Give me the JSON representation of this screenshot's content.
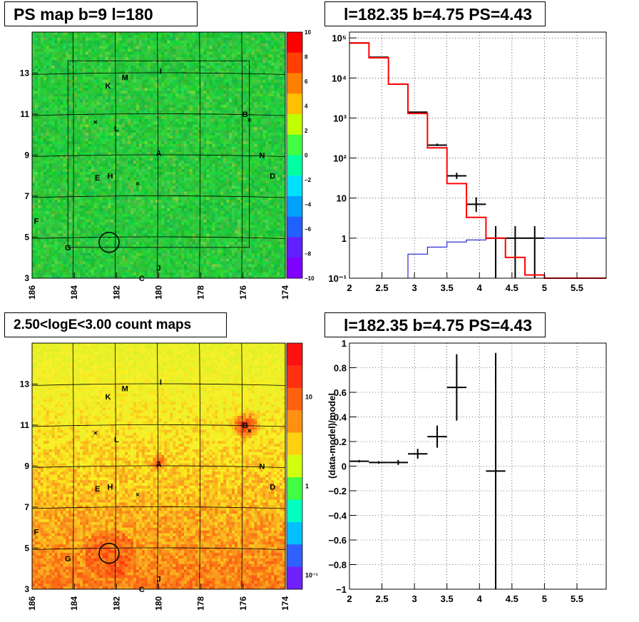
{
  "panels": {
    "map_top": {
      "title": "PS map b=9 l=180"
    },
    "spectrum": {
      "title": "l=182.35 b=4.75 PS=4.43"
    },
    "map_bottom": {
      "title": "2.50<logE<3.00 count maps"
    },
    "residual": {
      "title": "l=182.35 b=4.75 PS=4.43"
    }
  },
  "sources": [
    {
      "label": "A",
      "l": 180.0,
      "b": 9.1
    },
    {
      "label": "B",
      "l": 175.9,
      "b": 11.0
    },
    {
      "label": "C",
      "l": 180.8,
      "b": 3.0
    },
    {
      "label": "D",
      "l": 174.6,
      "b": 8.0
    },
    {
      "label": "E",
      "l": 182.9,
      "b": 7.9
    },
    {
      "label": "F",
      "l": 185.8,
      "b": 5.8
    },
    {
      "label": "G",
      "l": 184.3,
      "b": 4.5
    },
    {
      "label": "H",
      "l": 182.3,
      "b": 8.0
    },
    {
      "label": "I",
      "l": 179.9,
      "b": 13.1
    },
    {
      "label": "J",
      "l": 180.0,
      "b": 3.5
    },
    {
      "label": "K",
      "l": 182.4,
      "b": 12.4
    },
    {
      "label": "L",
      "l": 182.0,
      "b": 10.3
    },
    {
      "label": "M",
      "l": 181.6,
      "b": 12.8
    },
    {
      "label": "N",
      "l": 175.1,
      "b": 9.0
    }
  ],
  "crosses": [
    {
      "l": 183.0,
      "b": 10.6
    },
    {
      "l": 181.0,
      "b": 7.6
    },
    {
      "l": 175.7,
      "b": 10.7
    }
  ],
  "circle": {
    "l": 182.35,
    "b": 4.75
  },
  "chart_data": [
    {
      "type": "heatmap",
      "title": "PS map b=9 l=180",
      "x_ticks": [
        "186",
        "184",
        "182",
        "180",
        "178",
        "176",
        "174"
      ],
      "y_ticks": [
        "3",
        "5",
        "7",
        "9",
        "11",
        "13"
      ],
      "xlim": [
        186,
        174
      ],
      "ylim": [
        3,
        15
      ],
      "colorbar": {
        "min": -10,
        "max": 10,
        "ticks": [
          "10",
          "8",
          "6",
          "4",
          "2",
          "0",
          "−2",
          "−4",
          "−6",
          "−8",
          "−10"
        ]
      }
    },
    {
      "type": "line",
      "title": "l=182.35 b=4.75 PS=4.43",
      "x_ticks": [
        "2",
        "2.5",
        "3",
        "3.5",
        "4",
        "4.5",
        "5",
        "5.5"
      ],
      "y_ticks": [
        "10⁵",
        "10⁴",
        "10³",
        "10²",
        "10",
        "1",
        "10⁻¹"
      ],
      "xlim": [
        2,
        5.95
      ],
      "ylim": [
        0.1,
        140000
      ],
      "y_scale": "log",
      "grid": true,
      "bin_edges": [
        2.0,
        2.3,
        2.6,
        2.9,
        3.2,
        3.5,
        3.8,
        4.1,
        4.4,
        4.7,
        5.0,
        5.95
      ],
      "model_total": [
        75000,
        32000,
        7000,
        1300,
        180,
        23,
        3.3,
        1.0,
        0.33,
        0.12,
        0.1
      ],
      "model_background": [
        0.1,
        0.1,
        0.1,
        0.4,
        0.6,
        0.8,
        0.9,
        1.0,
        1.0,
        1.0,
        1.0
      ],
      "data": [
        {
          "x": 2.15,
          "y": 75000,
          "xerr": 0.15,
          "ylo": 75000,
          "yhi": 75000
        },
        {
          "x": 2.45,
          "y": 33000,
          "xerr": 0.15,
          "ylo": 33000,
          "yhi": 33000
        },
        {
          "x": 2.75,
          "y": 7000,
          "xerr": 0.15,
          "ylo": 7000,
          "yhi": 7000
        },
        {
          "x": 3.05,
          "y": 1400,
          "xerr": 0.15,
          "ylo": 1400,
          "yhi": 1400
        },
        {
          "x": 3.35,
          "y": 210,
          "xerr": 0.15,
          "ylo": 200,
          "yhi": 230
        },
        {
          "x": 3.65,
          "y": 36,
          "xerr": 0.15,
          "ylo": 30,
          "yhi": 43
        },
        {
          "x": 3.95,
          "y": 7,
          "xerr": 0.15,
          "ylo": 4.5,
          "yhi": 10.5
        },
        {
          "x": 4.25,
          "y": 1,
          "xerr": 0.15,
          "ylo": 0.1,
          "yhi": 2.0
        },
        {
          "x": 4.55,
          "y": 1,
          "xerr": 0.15,
          "ylo": 0.1,
          "yhi": 2.0
        },
        {
          "x": 4.85,
          "y": 1,
          "xerr": 0.15,
          "ylo": 0.1,
          "yhi": 2.0
        }
      ]
    },
    {
      "type": "heatmap",
      "title": "2.50<logE<3.00 count maps",
      "x_ticks": [
        "186",
        "184",
        "182",
        "180",
        "178",
        "176",
        "174"
      ],
      "y_ticks": [
        "3",
        "5",
        "7",
        "9",
        "11",
        "13"
      ],
      "xlim": [
        186,
        174
      ],
      "ylim": [
        3,
        15
      ],
      "color_scale": "log",
      "colorbar": {
        "min": 0.07,
        "max": 40,
        "ticks": [
          "10",
          "1",
          "10⁻¹"
        ]
      }
    },
    {
      "type": "scatter",
      "title": "l=182.35 b=4.75 PS=4.43",
      "ylabel": "(data-model)/model",
      "x_ticks": [
        "2",
        "2.5",
        "3",
        "3.5",
        "4",
        "4.5",
        "5",
        "5.5"
      ],
      "y_ticks": [
        "1",
        "0.8",
        "0.6",
        "0.4",
        "0.2",
        "0",
        "−0.2",
        "−0.4",
        "−0.6",
        "−0.8",
        "−1"
      ],
      "xlim": [
        2,
        5.95
      ],
      "ylim": [
        -1,
        1
      ],
      "grid": true,
      "data": [
        {
          "x": 2.15,
          "y": 0.04,
          "xerr": 0.15,
          "yerr": 0.01
        },
        {
          "x": 2.45,
          "y": 0.03,
          "xerr": 0.15,
          "yerr": 0.01
        },
        {
          "x": 2.75,
          "y": 0.03,
          "xerr": 0.15,
          "yerr": 0.02
        },
        {
          "x": 3.05,
          "y": 0.1,
          "xerr": 0.15,
          "yerr": 0.04
        },
        {
          "x": 3.35,
          "y": 0.24,
          "xerr": 0.15,
          "yerr": 0.09
        },
        {
          "x": 3.65,
          "y": 0.64,
          "xerr": 0.15,
          "yerr": 0.27
        },
        {
          "x": 4.25,
          "y": -0.04,
          "xerr": 0.15,
          "yerr": 0.96
        }
      ]
    }
  ],
  "colors": {
    "line_total": "#ff0000",
    "line_background": "#0000cc",
    "grid": "#000000"
  }
}
